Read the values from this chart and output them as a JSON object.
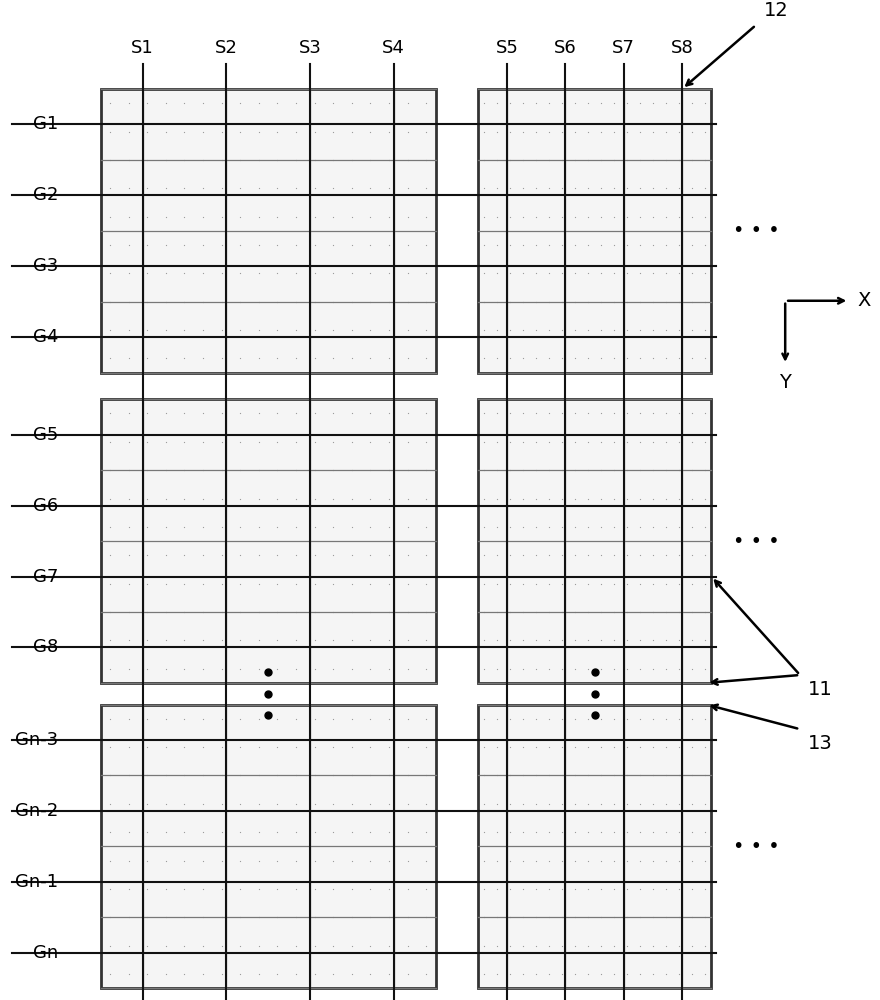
{
  "fig_width": 8.8,
  "fig_height": 10.0,
  "dpi": 100,
  "bg_color": "#ffffff",
  "source_labels": [
    "S1",
    "S2",
    "S3",
    "S4",
    "S5",
    "S6",
    "S7",
    "S8"
  ],
  "gate_labels_group1": [
    "G1",
    "G2",
    "G3",
    "G4"
  ],
  "gate_labels_group2": [
    "G5",
    "G6",
    "G7",
    "G8"
  ],
  "gate_labels_group3": [
    "Gn-3",
    "Gn-2",
    "Gn-1",
    "Gn"
  ],
  "label12": "12",
  "label11": "11",
  "label13": "13",
  "block_fill": "#f5f5f5",
  "block_edge": "#333333",
  "pixel_dot_color": "#999999",
  "gate_line_color": "#111111",
  "source_line_color": "#111111",
  "inner_line_color": "#777777",
  "font_size": 13
}
